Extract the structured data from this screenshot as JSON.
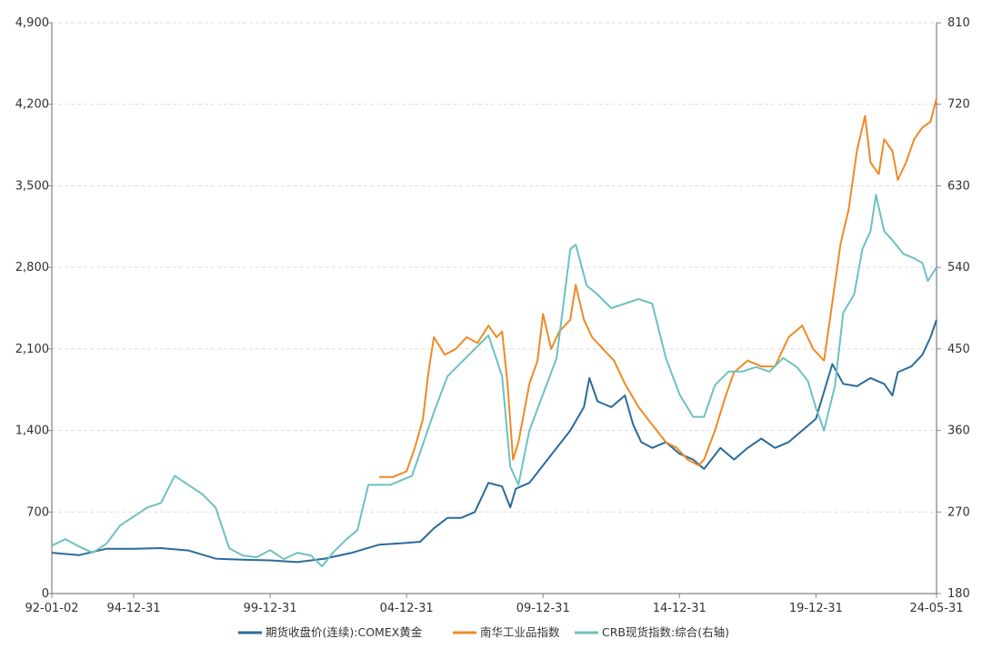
{
  "chart_data": {
    "type": "line",
    "title": "",
    "x_ticks": [
      "92-01-02",
      "94-12-31",
      "99-12-31",
      "04-12-31",
      "09-12-31",
      "14-12-31",
      "19-12-31",
      "24-05-31"
    ],
    "left_axis": {
      "ylim": [
        0,
        4900
      ],
      "ticks": [
        "0",
        "700",
        "1,400",
        "2,100",
        "2,800",
        "3,500",
        "4,200",
        "4,900"
      ]
    },
    "right_axis": {
      "ylim": [
        180,
        810
      ],
      "ticks": [
        "180",
        "270",
        "360",
        "450",
        "540",
        "630",
        "720",
        "810"
      ]
    },
    "grid": "horizontal-dashed",
    "legend_position": "bottom",
    "series": [
      {
        "name": "期货收盘价(连续):COMEX黄金",
        "axis": "left",
        "color": "#2b6b99",
        "x": [
          1992.0,
          1993.0,
          1994.0,
          1995.0,
          1996.0,
          1997.0,
          1998.0,
          1999.0,
          2000.0,
          2001.0,
          2002.0,
          2003.0,
          2004.0,
          2005.0,
          2005.5,
          2006.0,
          2006.5,
          2007.0,
          2007.5,
          2008.0,
          2008.5,
          2008.8,
          2009.0,
          2009.5,
          2010.0,
          2010.5,
          2011.0,
          2011.5,
          2011.7,
          2012.0,
          2012.5,
          2013.0,
          2013.3,
          2013.6,
          2014.0,
          2014.5,
          2015.0,
          2015.5,
          2015.9,
          2016.5,
          2017.0,
          2017.5,
          2018.0,
          2018.5,
          2019.0,
          2019.5,
          2020.0,
          2020.6,
          2021.0,
          2021.5,
          2022.0,
          2022.5,
          2022.8,
          2023.0,
          2023.5,
          2023.9,
          2024.2,
          2024.42
        ],
        "y": [
          350,
          330,
          385,
          385,
          390,
          370,
          300,
          290,
          285,
          270,
          300,
          350,
          420,
          435,
          445,
          560,
          650,
          650,
          700,
          950,
          920,
          740,
          900,
          950,
          1100,
          1250,
          1400,
          1600,
          1850,
          1650,
          1600,
          1700,
          1450,
          1300,
          1250,
          1300,
          1200,
          1150,
          1070,
          1250,
          1150,
          1250,
          1330,
          1250,
          1300,
          1400,
          1500,
          1970,
          1800,
          1780,
          1850,
          1800,
          1700,
          1900,
          1950,
          2050,
          2200,
          2350
        ]
      },
      {
        "name": "南华工业品指数",
        "axis": "left",
        "color": "#ee8a25",
        "x": [
          2004.0,
          2004.5,
          2005.0,
          2005.3,
          2005.6,
          2005.8,
          2006.0,
          2006.4,
          2006.8,
          2007.2,
          2007.6,
          2008.0,
          2008.3,
          2008.5,
          2008.7,
          2008.9,
          2009.1,
          2009.5,
          2009.8,
          2010.0,
          2010.3,
          2010.6,
          2011.0,
          2011.2,
          2011.5,
          2011.8,
          2012.2,
          2012.6,
          2013.0,
          2013.5,
          2014.0,
          2014.5,
          2014.9,
          2015.3,
          2015.7,
          2015.9,
          2016.3,
          2016.7,
          2017.0,
          2017.5,
          2018.0,
          2018.5,
          2019.0,
          2019.5,
          2019.9,
          2020.3,
          2020.6,
          2020.9,
          2021.2,
          2021.5,
          2021.8,
          2022.0,
          2022.3,
          2022.5,
          2022.8,
          2023.0,
          2023.3,
          2023.6,
          2023.9,
          2024.2,
          2024.42
        ],
        "y": [
          1000,
          1000,
          1050,
          1250,
          1500,
          1900,
          2200,
          2050,
          2100,
          2200,
          2150,
          2300,
          2200,
          2250,
          1800,
          1150,
          1300,
          1800,
          2000,
          2400,
          2100,
          2250,
          2350,
          2650,
          2350,
          2200,
          2100,
          2000,
          1800,
          1600,
          1450,
          1300,
          1250,
          1150,
          1100,
          1150,
          1400,
          1700,
          1900,
          2000,
          1950,
          1950,
          2200,
          2300,
          2100,
          2000,
          2500,
          3000,
          3300,
          3800,
          4100,
          3700,
          3600,
          3900,
          3800,
          3550,
          3700,
          3900,
          4000,
          4050,
          4250
        ]
      },
      {
        "name": "CRB现货指数:综合(右轴)",
        "axis": "right",
        "color": "#6cc1c0",
        "x": [
          1992.0,
          1992.5,
          1993.0,
          1993.5,
          1994.0,
          1994.5,
          1995.0,
          1995.5,
          1996.0,
          1996.5,
          1997.0,
          1997.5,
          1998.0,
          1998.5,
          1999.0,
          1999.5,
          2000.0,
          2000.5,
          2001.0,
          2001.5,
          2001.9,
          2002.3,
          2002.8,
          2003.2,
          2003.6,
          2004.0,
          2004.4,
          2004.8,
          2005.2,
          2005.6,
          2006.0,
          2006.5,
          2007.0,
          2007.5,
          2008.0,
          2008.5,
          2008.8,
          2009.1,
          2009.5,
          2010.0,
          2010.5,
          2011.0,
          2011.2,
          2011.6,
          2012.0,
          2012.5,
          2013.0,
          2013.5,
          2014.0,
          2014.5,
          2015.0,
          2015.5,
          2015.9,
          2016.3,
          2016.8,
          2017.3,
          2017.8,
          2018.3,
          2018.8,
          2019.3,
          2019.7,
          2020.0,
          2020.3,
          2020.7,
          2021.0,
          2021.4,
          2021.7,
          2022.0,
          2022.2,
          2022.5,
          2022.8,
          2023.2,
          2023.6,
          2023.9,
          2024.1,
          2024.42
        ],
        "y": [
          233,
          240,
          232,
          225,
          235,
          255,
          265,
          275,
          280,
          310,
          300,
          290,
          275,
          230,
          222,
          220,
          228,
          218,
          225,
          222,
          210,
          225,
          240,
          250,
          300,
          300,
          300,
          305,
          310,
          345,
          380,
          420,
          435,
          450,
          465,
          420,
          320,
          300,
          360,
          400,
          440,
          560,
          565,
          520,
          510,
          495,
          500,
          505,
          500,
          440,
          400,
          375,
          375,
          410,
          425,
          425,
          430,
          425,
          440,
          430,
          415,
          385,
          360,
          410,
          490,
          510,
          560,
          580,
          620,
          580,
          570,
          555,
          550,
          545,
          525,
          540
        ]
      }
    ]
  }
}
